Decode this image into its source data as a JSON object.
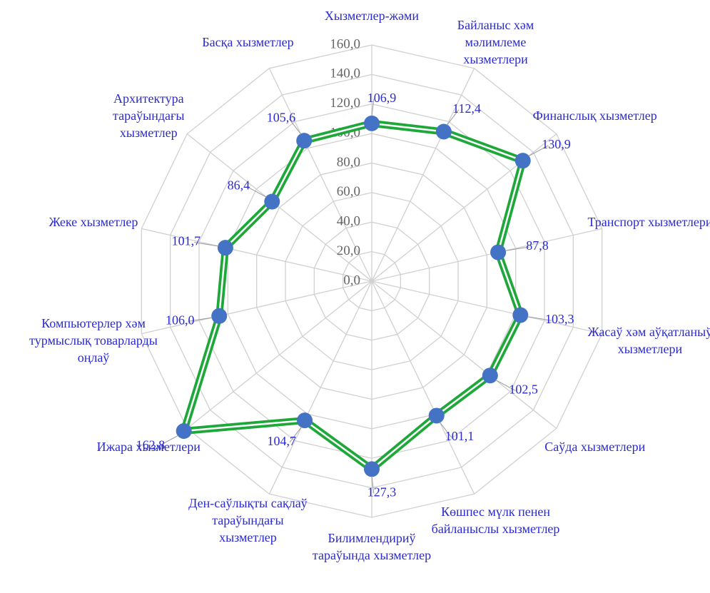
{
  "chart_data": {
    "type": "radar",
    "categories": [
      "Хызметлер-жәми",
      "Байланыс хәм мәлимлеме хызметлери",
      "Финанслық хызметлер",
      "Транспорт хызметлери",
      "Жасаў хәм аўқатланыў хызметлери",
      "Саўда хызметлери",
      "Көшпес мүлк пенен байланыслы хызметлер",
      "Билимлендириў тараўында хызметлер",
      "Ден-саўлықты сақлаў тараўындағы хызметлер",
      "Ижара хызметлери",
      "Компьютерлер хәм турмыслық товарларды оңлаў",
      "Жеке хызметлер",
      "Архитектура тараўындағы хызметлер",
      "Басқа хызметлер"
    ],
    "values": [
      106.9,
      112.4,
      130.9,
      87.8,
      103.3,
      102.5,
      101.1,
      127.3,
      104.7,
      162.8,
      106.0,
      101.7,
      86.4,
      105.6
    ],
    "value_labels": [
      "106,9",
      "112,4",
      "130,9",
      "87,8",
      "103,3",
      "102,5",
      "101,1",
      "127,3",
      "104,7",
      "162,8",
      "106,0",
      "101,7",
      "86,4",
      "105,6"
    ],
    "color": "#1fa83a",
    "marker_color": "#4472c4",
    "ylim": [
      0,
      160
    ],
    "yticks": [
      {
        "value": 0,
        "label": "0,0"
      },
      {
        "value": 20,
        "label": "20,0"
      },
      {
        "value": 40,
        "label": "40,0"
      },
      {
        "value": 60,
        "label": "60,0"
      },
      {
        "value": 80,
        "label": "80,0"
      },
      {
        "value": 100,
        "label": "100,0"
      },
      {
        "value": 120,
        "label": "120,0"
      },
      {
        "value": 140,
        "label": "140,0"
      },
      {
        "value": 160,
        "label": "160,0"
      }
    ],
    "grid": true
  }
}
